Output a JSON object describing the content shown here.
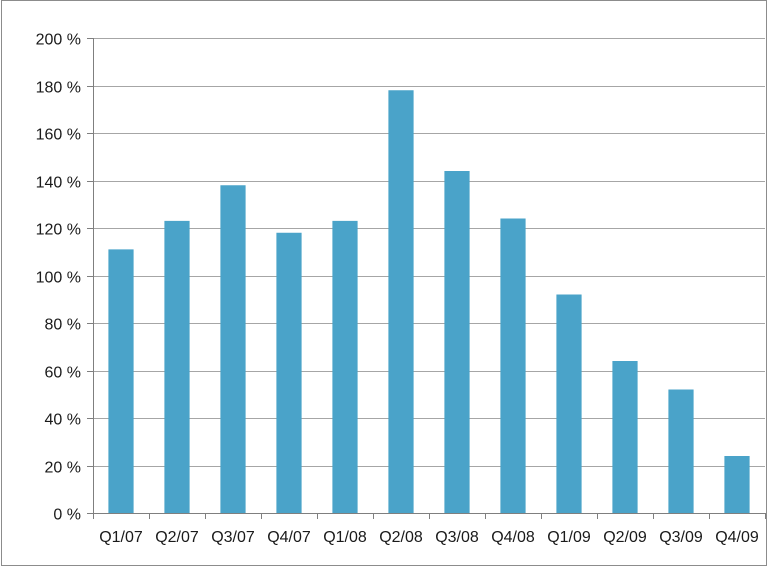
{
  "chart_data": {
    "type": "bar",
    "categories": [
      "Q1/07",
      "Q2/07",
      "Q3/07",
      "Q4/07",
      "Q1/08",
      "Q2/08",
      "Q3/08",
      "Q4/08",
      "Q1/09",
      "Q2/09",
      "Q3/09",
      "Q4/09"
    ],
    "values": [
      111,
      123,
      138,
      118,
      123,
      178,
      144,
      124,
      92,
      64,
      52,
      24
    ],
    "ylim": [
      0,
      200
    ],
    "yticks": [
      0,
      20,
      40,
      60,
      80,
      100,
      120,
      140,
      160,
      180,
      200
    ],
    "ytick_suffix": " %",
    "grid": "horizontal",
    "legend": "none",
    "colors": {
      "bar": "#4aa3c9",
      "grid": "#a6a6a6",
      "axis": "#7f7f7f",
      "text": "#1a1a1a"
    }
  }
}
